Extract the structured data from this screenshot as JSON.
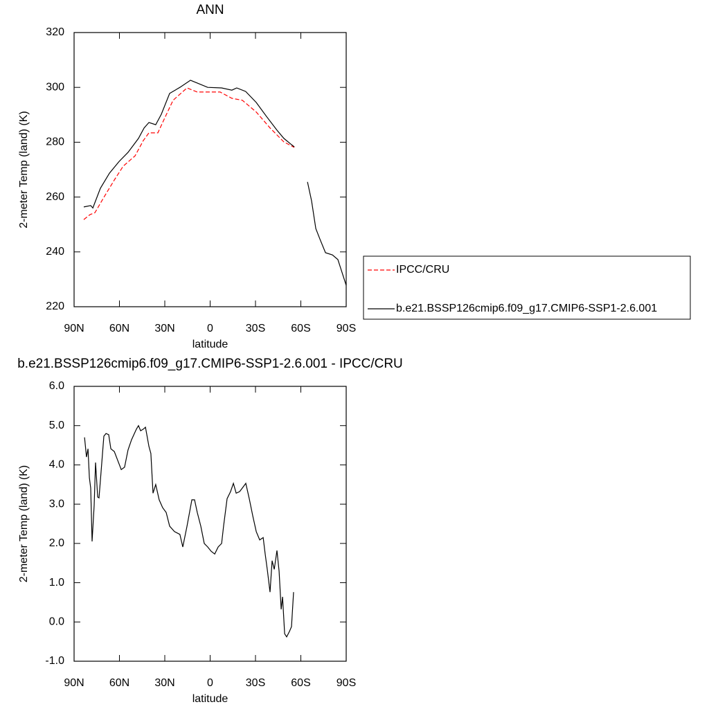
{
  "chart_data": [
    {
      "type": "line",
      "title": "ANN",
      "xlabel": "latitude",
      "ylabel": "2-meter Temp (land) (K)",
      "xlim": [
        90,
        -90
      ],
      "xticks": [
        {
          "value": 90,
          "label": "90N"
        },
        {
          "value": 60,
          "label": "60N"
        },
        {
          "value": 30,
          "label": "30N"
        },
        0,
        {
          "value": -30,
          "label": "30S"
        },
        {
          "value": -60,
          "label": "60S"
        },
        {
          "value": -90,
          "label": "90S"
        }
      ],
      "ylim": [
        220,
        320
      ],
      "yticks": [
        220,
        240,
        260,
        280,
        300,
        320
      ],
      "legend": "right",
      "series": [
        {
          "name": "IPCC/CRU",
          "color": "#ff0000",
          "style": "dashed",
          "x": [
            83.6,
            79.4,
            76.2,
            70.3,
            63.4,
            57.5,
            49.7,
            44.2,
            40.5,
            34.6,
            30,
            24.5,
            15.3,
            8.5,
            1.6,
            -6.6,
            -14.4,
            -21.3,
            -30.5,
            -39.6,
            -48.8,
            -55.7
          ],
          "values": [
            251.8,
            253.6,
            254.3,
            259.9,
            266.2,
            271.3,
            275,
            280.6,
            283.4,
            283.4,
            288.9,
            295.3,
            299.8,
            298.3,
            298.3,
            298.3,
            296,
            295.3,
            291,
            285.2,
            280.1,
            278.1
          ]
        },
        {
          "name": "b.e21.BSSP126cmip6.f09_g17.CMIP6-SSP1-2.6.001",
          "color": "#000000",
          "style": "solid",
          "x": [
            83.6,
            79,
            77.6,
            72.6,
            66.6,
            60.2,
            54.3,
            47.4,
            43.7,
            40.5,
            36,
            32.3,
            26.8,
            20,
            13,
            8.5,
            1.6,
            -7.6,
            -14.4,
            -17.6,
            -23.5,
            -30.5,
            -37.3,
            -44.2,
            -48.8,
            -53.4,
            -55.7,
            -60,
            -64.4,
            -67.1,
            -69.9,
            -72.6,
            -76.3,
            -80.9,
            -84.5,
            -90
          ],
          "values": [
            256.4,
            256.9,
            256,
            263.2,
            268.7,
            273,
            276.3,
            281.4,
            285.2,
            287.2,
            286.4,
            290.2,
            297.8,
            300,
            302.6,
            301.6,
            300,
            299.8,
            299,
            299.8,
            298.5,
            294.5,
            289.4,
            284.4,
            281.4,
            279.3,
            278.3,
            null,
            265.5,
            258.6,
            248.5,
            244.7,
            239.7,
            238.9,
            237.2,
            227.8
          ]
        }
      ]
    },
    {
      "type": "line",
      "title": "b.e21.BSSP126cmip6.f09_g17.CMIP6-SSP1-2.6.001 - IPCC/CRU",
      "xlabel": "latitude",
      "ylabel": "2-meter Temp (land) (K)",
      "xlim": [
        90,
        -90
      ],
      "xticks": [
        {
          "value": 90,
          "label": "90N"
        },
        {
          "value": 60,
          "label": "60N"
        },
        {
          "value": 30,
          "label": "30N"
        },
        0,
        {
          "value": -30,
          "label": "30S"
        },
        {
          "value": -60,
          "label": "60S"
        },
        {
          "value": -90,
          "label": "90S"
        }
      ],
      "ylim": [
        -1,
        6
      ],
      "yticks": [
        {
          "value": -1,
          "label": "-1.0"
        },
        {
          "value": 0,
          "label": "0.0"
        },
        {
          "value": 1,
          "label": "1.0"
        },
        {
          "value": 2,
          "label": "2.0"
        },
        {
          "value": 3,
          "label": "3.0"
        },
        {
          "value": 4,
          "label": "4.0"
        },
        {
          "value": 5,
          "label": "5.0"
        },
        {
          "value": 6,
          "label": "6.0"
        }
      ],
      "series": [
        {
          "color": "#000000",
          "style": "solid",
          "x": [
            83.1,
            81.8,
            80.8,
            79.9,
            79,
            78.1,
            76.7,
            75.8,
            74.4,
            73.5,
            72.1,
            70.3,
            68.9,
            67.1,
            65.7,
            63.4,
            61.1,
            58.8,
            56.6,
            54.3,
            52,
            48.8,
            47.4,
            46,
            44.2,
            42.8,
            40.5,
            39.2,
            37.8,
            36,
            33.7,
            31.4,
            29.1,
            26.8,
            23.6,
            20,
            18.1,
            15.3,
            12.1,
            10.3,
            8.5,
            6.2,
            3.9,
            1.6,
            -0.7,
            -3,
            -5.3,
            -7.6,
            -8.9,
            -11.2,
            -13.5,
            -15.4,
            -17.2,
            -19.5,
            -21.3,
            -23.6,
            -25.9,
            -28.2,
            -30.5,
            -32.8,
            -35.1,
            -36.4,
            -37.8,
            -39.6,
            -41,
            -42.4,
            -44.2,
            -45.6,
            -47,
            -47.9,
            -49.3,
            -50.6,
            -52.5,
            -53.8,
            -55.2
          ],
          "values": [
            4.7,
            4.2,
            4.41,
            3.67,
            3.41,
            2.05,
            2.97,
            4.06,
            3.18,
            3.16,
            3.85,
            4.73,
            4.8,
            4.77,
            4.41,
            4.34,
            4.11,
            3.88,
            3.94,
            4.38,
            4.64,
            4.91,
            5.0,
            4.87,
            4.91,
            4.96,
            4.47,
            4.29,
            3.28,
            3.5,
            3.11,
            2.91,
            2.79,
            2.44,
            2.3,
            2.23,
            1.91,
            2.44,
            3.11,
            3.11,
            2.79,
            2.44,
            2.0,
            1.91,
            1.8,
            1.73,
            1.91,
            2.0,
            2.44,
            3.14,
            3.32,
            3.53,
            3.28,
            3.32,
            3.41,
            3.53,
            3.14,
            2.7,
            2.3,
            2.09,
            2.15,
            1.73,
            1.34,
            0.76,
            1.56,
            1.34,
            1.82,
            1.29,
            0.32,
            0.64,
            -0.3,
            -0.38,
            -0.24,
            -0.12,
            0.76
          ]
        }
      ]
    }
  ]
}
